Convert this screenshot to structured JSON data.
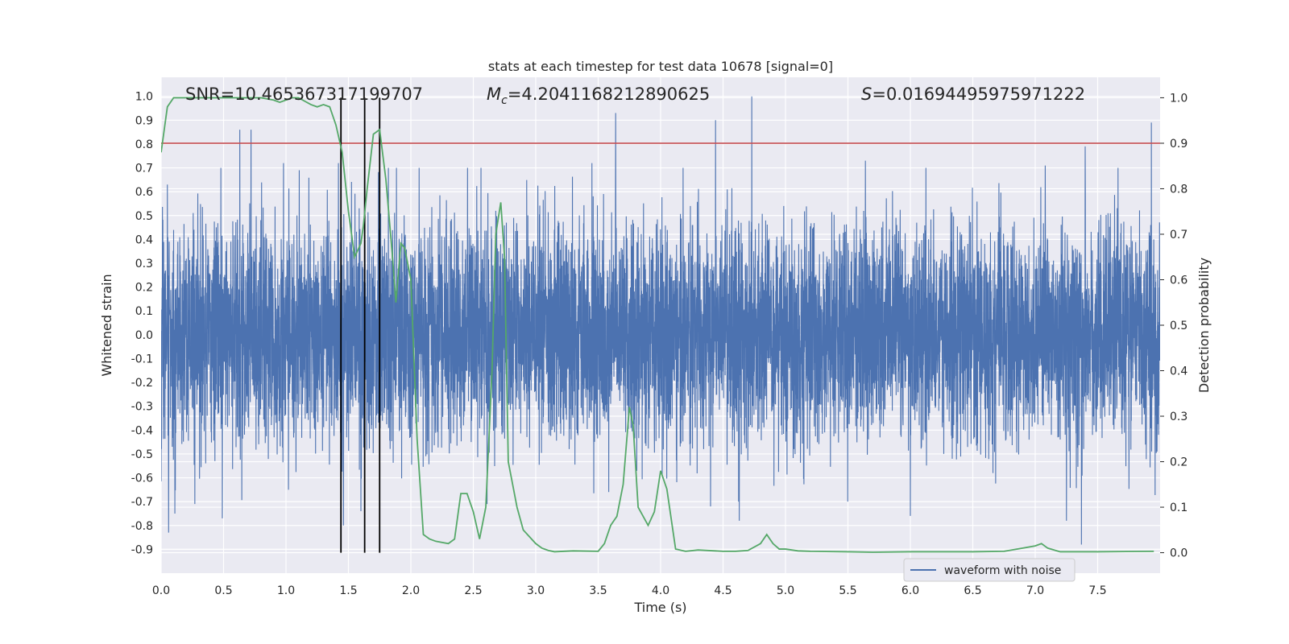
{
  "chart_data": {
    "type": "line",
    "title": "stats at each timestep for test data 10678 [signal=0]",
    "xlabel": "Time (s)",
    "ylabel": "Whitened strain",
    "y2label": "Detection probability",
    "xlim": [
      0.0,
      8.0
    ],
    "ylim": [
      -1.0,
      1.08
    ],
    "y2lim": [
      -0.045,
      1.045
    ],
    "xticks": [
      "0.0",
      "0.5",
      "1.0",
      "1.5",
      "2.0",
      "2.5",
      "3.0",
      "3.5",
      "4.0",
      "4.5",
      "5.0",
      "5.5",
      "6.0",
      "6.5",
      "7.0",
      "7.5"
    ],
    "yticks": [
      "-0.9",
      "-0.8",
      "-0.7",
      "-0.6",
      "-0.5",
      "-0.4",
      "-0.3",
      "-0.2",
      "-0.1",
      "0.0",
      "0.1",
      "0.2",
      "0.3",
      "0.4",
      "0.5",
      "0.6",
      "0.7",
      "0.8",
      "0.9",
      "1.0"
    ],
    "y2ticks": [
      "0.0",
      "0.1",
      "0.2",
      "0.3",
      "0.4",
      "0.5",
      "0.6",
      "0.7",
      "0.8",
      "0.9",
      "1.0"
    ],
    "grid": true,
    "legend_position": "bottom-right",
    "colors": {
      "waveform": "#4c72b0",
      "probability": "#55a868",
      "threshold": "#c44e52",
      "markers": "#000000",
      "background": "#eaeaf2",
      "grid": "#ffffff"
    },
    "annotations": [
      {
        "text": "SNR=10.465367317199707"
      },
      {
        "prefix": "M",
        "sub": "c",
        "text": "=4.2041168212890625"
      },
      {
        "prefix": "S",
        "text": "=0.01694495975971222"
      }
    ],
    "threshold_y2": 0.9,
    "vertical_markers_x": [
      1.44,
      1.63,
      1.75
    ],
    "series": [
      {
        "name": "waveform with noise",
        "axis": "left",
        "style": "dense-noise",
        "duration": 8.0,
        "noise_amplitude": 0.32,
        "peaks": [
          {
            "x": 0.05,
            "y": 0.63
          },
          {
            "x": 0.06,
            "y": -0.83
          },
          {
            "x": 0.11,
            "y": -0.75
          },
          {
            "x": 0.27,
            "y": -0.71
          },
          {
            "x": 0.49,
            "y": -0.77
          },
          {
            "x": 0.63,
            "y": 0.86
          },
          {
            "x": 0.72,
            "y": 0.86
          },
          {
            "x": 0.98,
            "y": 0.72
          },
          {
            "x": 1.02,
            "y": -0.65
          },
          {
            "x": 1.42,
            "y": 0.72
          },
          {
            "x": 1.46,
            "y": -0.8
          },
          {
            "x": 1.6,
            "y": -0.74
          },
          {
            "x": 1.75,
            "y": -0.78
          },
          {
            "x": 2.61,
            "y": -0.71
          },
          {
            "x": 2.68,
            "y": 0.52
          },
          {
            "x": 3.45,
            "y": 0.72
          },
          {
            "x": 3.64,
            "y": 0.93
          },
          {
            "x": 4.44,
            "y": 0.9
          },
          {
            "x": 4.4,
            "y": -0.72
          },
          {
            "x": 4.73,
            "y": 1.0
          },
          {
            "x": 4.63,
            "y": -0.78
          },
          {
            "x": 5.64,
            "y": 0.73
          },
          {
            "x": 6.0,
            "y": -0.76
          },
          {
            "x": 7.08,
            "y": 0.71
          },
          {
            "x": 7.25,
            "y": -0.78
          },
          {
            "x": 7.4,
            "y": 0.79
          },
          {
            "x": 7.37,
            "y": -0.88
          },
          {
            "x": 7.93,
            "y": 0.89
          }
        ]
      },
      {
        "name": "",
        "axis": "right",
        "x": [
          0.0,
          0.05,
          0.1,
          0.2,
          0.4,
          0.6,
          0.8,
          0.9,
          0.95,
          1.05,
          1.1,
          1.2,
          1.25,
          1.3,
          1.35,
          1.4,
          1.45,
          1.5,
          1.55,
          1.6,
          1.62,
          1.65,
          1.7,
          1.75,
          1.8,
          1.85,
          1.88,
          1.92,
          1.95,
          2.0,
          2.05,
          2.1,
          2.15,
          2.2,
          2.3,
          2.35,
          2.4,
          2.45,
          2.5,
          2.55,
          2.6,
          2.65,
          2.68,
          2.72,
          2.75,
          2.78,
          2.85,
          2.9,
          3.0,
          3.05,
          3.1,
          3.15,
          3.3,
          3.5,
          3.55,
          3.6,
          3.65,
          3.7,
          3.75,
          3.78,
          3.82,
          3.9,
          3.95,
          4.0,
          4.05,
          4.12,
          4.2,
          4.3,
          4.5,
          4.6,
          4.7,
          4.8,
          4.85,
          4.9,
          4.95,
          5.0,
          5.1,
          5.2,
          5.5,
          5.7,
          6.0,
          6.5,
          6.75,
          6.9,
          7.0,
          7.05,
          7.1,
          7.2,
          7.5,
          7.95
        ],
        "y": [
          0.88,
          0.98,
          1.0,
          1.0,
          1.0,
          1.0,
          1.0,
          0.995,
          0.99,
          1.0,
          1.0,
          0.985,
          0.98,
          0.985,
          0.98,
          0.94,
          0.88,
          0.75,
          0.65,
          0.68,
          0.72,
          0.8,
          0.92,
          0.93,
          0.82,
          0.66,
          0.55,
          0.68,
          0.67,
          0.6,
          0.25,
          0.04,
          0.03,
          0.025,
          0.02,
          0.03,
          0.13,
          0.13,
          0.09,
          0.03,
          0.1,
          0.4,
          0.7,
          0.77,
          0.65,
          0.2,
          0.1,
          0.05,
          0.02,
          0.01,
          0.005,
          0.002,
          0.004,
          0.003,
          0.02,
          0.06,
          0.08,
          0.15,
          0.32,
          0.28,
          0.1,
          0.06,
          0.09,
          0.18,
          0.14,
          0.008,
          0.003,
          0.006,
          0.003,
          0.003,
          0.005,
          0.02,
          0.04,
          0.02,
          0.008,
          0.008,
          0.004,
          0.003,
          0.002,
          0.001,
          0.002,
          0.002,
          0.003,
          0.01,
          0.015,
          0.02,
          0.01,
          0.002,
          0.002,
          0.003
        ]
      }
    ]
  }
}
